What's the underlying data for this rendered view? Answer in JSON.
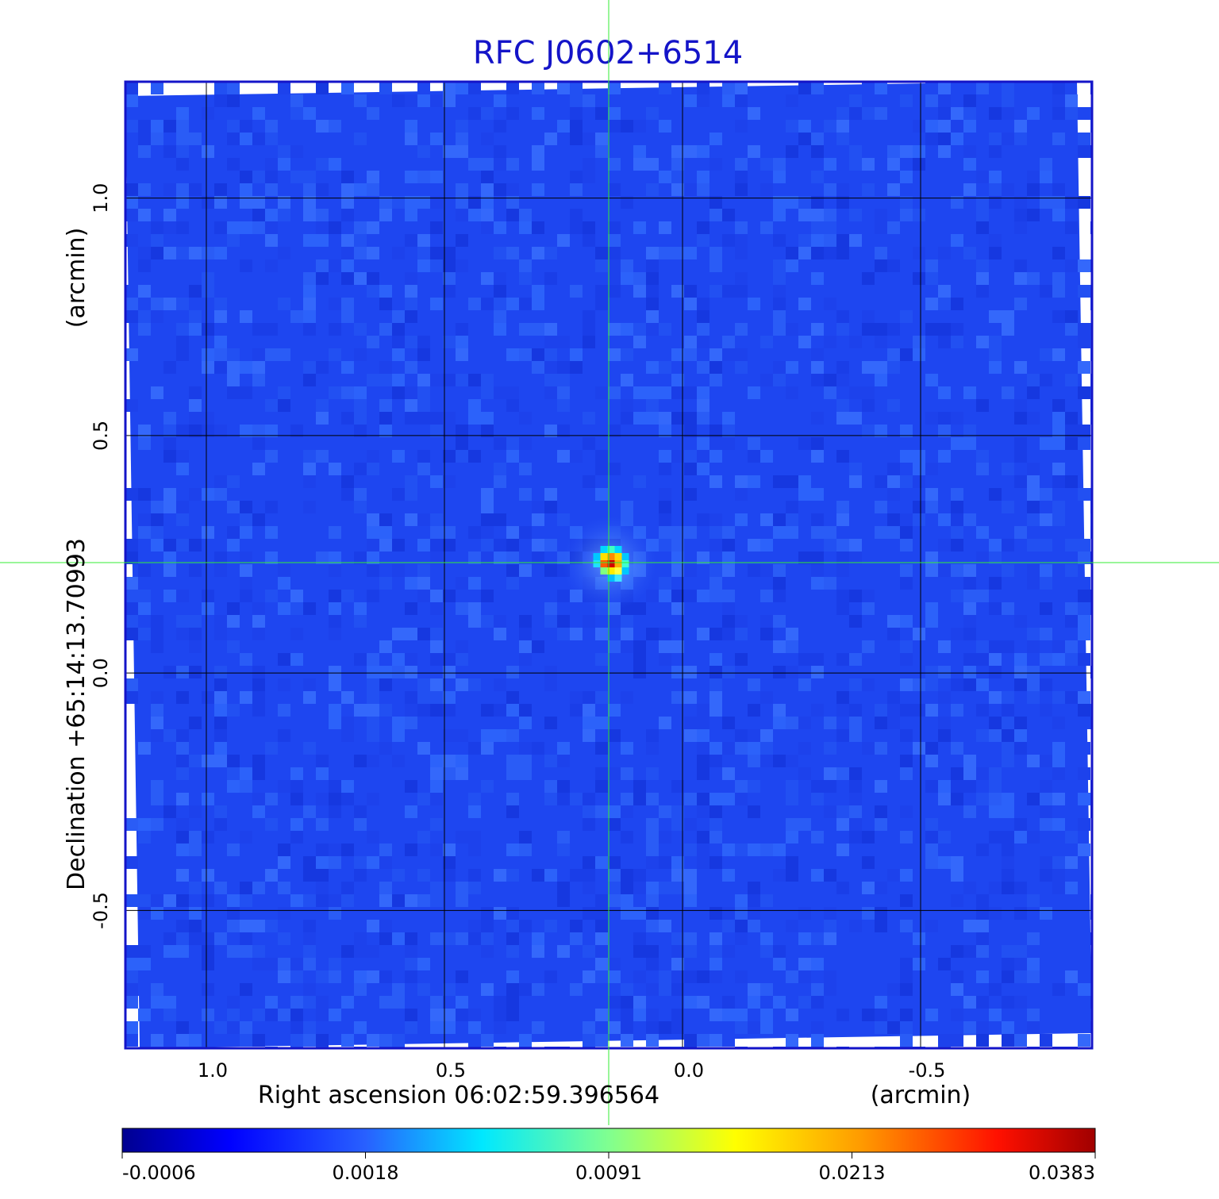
{
  "chart_data": {
    "type": "heatmap",
    "title": "RFC J0602+6514",
    "xlabel": "Right ascension  06:02:59.396564",
    "xunit": "(arcmin)",
    "ylabel": "Declination  +65:14:13.70993",
    "yunit": "(arcmin)",
    "x_ticks": [
      1.0,
      0.5,
      0.0,
      -0.5
    ],
    "x_tick_labels": [
      "1.0",
      "0.5",
      "0.0",
      "-0.5"
    ],
    "y_ticks": [
      1.0,
      0.5,
      0.0,
      -0.5
    ],
    "y_tick_labels": [
      "1.0",
      "0.5",
      "0.0",
      "-0.5"
    ],
    "xlim": [
      1.17,
      -0.86
    ],
    "ylim": [
      -0.79,
      1.245
    ],
    "grid": true,
    "colorscale": "jet",
    "colorbar_ticks": [
      "-0.0006",
      "0.0018",
      "0.0091",
      "0.0213",
      "0.0383"
    ],
    "peak": {
      "x": 0.15,
      "y": 0.23,
      "value": 0.0383
    },
    "crosshair": {
      "x": 0.15,
      "y": 0.23
    },
    "colors": {
      "title": "#1414c8",
      "frame": "#1414c8",
      "crosshair": "#33ee33",
      "grid": "#000000",
      "background_map": "#1e46f0"
    }
  }
}
